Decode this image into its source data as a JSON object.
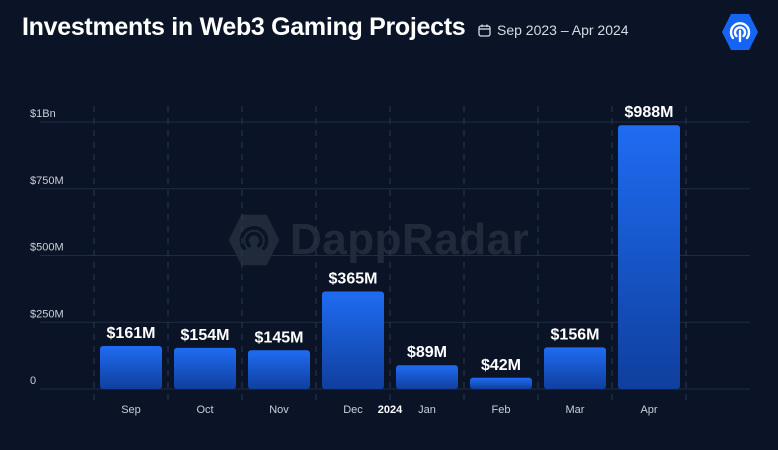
{
  "header": {
    "title": "Investments in Web3 Gaming Projects",
    "date_range": "Sep 2023 – Apr 2024",
    "calendar_icon": "calendar-icon",
    "logo_icon": "dappradar-logo-icon"
  },
  "watermark": {
    "text": "DappRadar"
  },
  "colors": {
    "background": "#0b1426",
    "bar_top": "#1f6cf2",
    "bar_bottom": "#0f3f9e",
    "logo": "#1565f5"
  },
  "chart_data": {
    "type": "bar",
    "categories": [
      "Sep",
      "Oct",
      "Nov",
      "Dec",
      "Jan",
      "Feb",
      "Mar",
      "Apr"
    ],
    "year_marker": {
      "text": "2024",
      "before_category": "Jan"
    },
    "values": [
      161,
      154,
      145,
      365,
      89,
      42,
      156,
      988
    ],
    "value_labels": [
      "$161M",
      "$154M",
      "$145M",
      "$365M",
      "$89M",
      "$42M",
      "$156M",
      "$988M"
    ],
    "unit": "millions USD",
    "ylim": [
      0,
      1000
    ],
    "yticks": [
      {
        "value": 0,
        "label": "0"
      },
      {
        "value": 250,
        "label": "$250M"
      },
      {
        "value": 500,
        "label": "$500M"
      },
      {
        "value": 750,
        "label": "$750M"
      },
      {
        "value": 1000,
        "label": "$1Bn"
      }
    ],
    "title": "Investments in Web3 Gaming Projects",
    "xlabel": "",
    "ylabel": "",
    "grid": true,
    "legend": "none"
  }
}
